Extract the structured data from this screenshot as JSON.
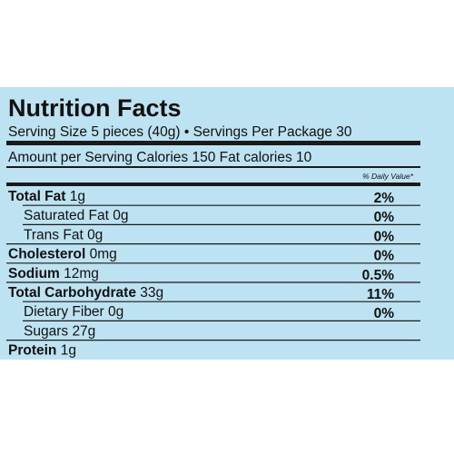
{
  "label": {
    "title": "Nutrition Facts",
    "serving": "Serving Size 5 pieces (40g) • Servings Per Package 30",
    "amount_line": "Amount per Serving Calories 150  Fat calories 10",
    "daily_value_header": "% Daily Value*",
    "nutrients": [
      {
        "name": "Total Fat",
        "amount": "1g",
        "dv": "2%",
        "sub": [
          {
            "name": "Saturated Fat",
            "amount": "0g",
            "dv": "0%"
          },
          {
            "name": "Trans Fat",
            "amount": "0g",
            "dv": "0%"
          }
        ]
      },
      {
        "name": "Cholesterol",
        "amount": "0mg",
        "dv": "0%"
      },
      {
        "name": "Sodium",
        "amount": "12mg",
        "dv": "0.5%"
      },
      {
        "name": "Total Carbohydrate",
        "amount": "33g",
        "dv": "11%",
        "sub": [
          {
            "name": "Dietary Fiber",
            "amount": "0g",
            "dv": "0%"
          },
          {
            "name": "Sugars",
            "amount": "27g"
          }
        ]
      },
      {
        "name": "Protein",
        "amount": "1g"
      }
    ]
  }
}
